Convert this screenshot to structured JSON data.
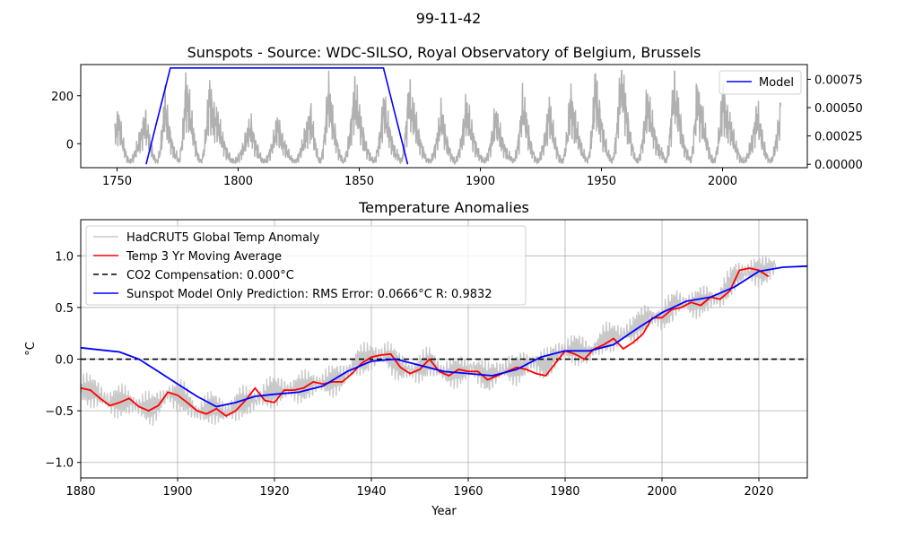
{
  "figure": {
    "suptitle": "99-11-42"
  },
  "chart_data": [
    {
      "type": "line",
      "title": "Sunspots -  Source: WDC-SILSO, Royal Observatory of Belgium, Brussels",
      "xlabel": "",
      "ylabel": "",
      "xlim": [
        1735,
        2035
      ],
      "ylim": [
        -100,
        330
      ],
      "y2lim": [
        -3e-05,
        0.00088
      ],
      "xticks": [
        1750,
        1800,
        1850,
        1900,
        1950,
        2000
      ],
      "yticks": [
        0,
        200
      ],
      "y2ticks": [
        0.0,
        0.00025,
        0.0005,
        0.00075
      ],
      "y2tick_labels": [
        "0.00000",
        "0.00025",
        "0.00050",
        "0.00075"
      ],
      "grid": false,
      "legend_position": "top-right",
      "legend": [
        {
          "name": "Model",
          "color": "#0000ff"
        }
      ],
      "sunspot_color": "#b0b0b0",
      "sunspot_cycle_peaks": [
        [
          1750.5,
          90
        ],
        [
          1761.5,
          90
        ],
        [
          1769.8,
          140
        ],
        [
          1778.5,
          230
        ],
        [
          1788.3,
          200
        ],
        [
          1805.2,
          65
        ],
        [
          1816.4,
          65
        ],
        [
          1829.9,
          110
        ],
        [
          1837.2,
          200
        ],
        [
          1848.1,
          185
        ],
        [
          1860.1,
          140
        ],
        [
          1870.6,
          200
        ],
        [
          1883.9,
          100
        ],
        [
          1894.1,
          130
        ],
        [
          1906.2,
          95
        ],
        [
          1917.6,
          150
        ],
        [
          1928.4,
          120
        ],
        [
          1937.4,
          170
        ],
        [
          1947.5,
          220
        ],
        [
          1958.2,
          270
        ],
        [
          1968.9,
          160
        ],
        [
          1979.9,
          230
        ],
        [
          1989.6,
          220
        ],
        [
          2000.3,
          180
        ],
        [
          2014.3,
          110
        ],
        [
          2024.0,
          120
        ]
      ],
      "sunspot_cycle_minima": [
        1755.2,
        1766.5,
        1775.5,
        1784.7,
        1798.3,
        1810.6,
        1823.3,
        1833.9,
        1843.5,
        1856.0,
        1867.2,
        1878.9,
        1889.6,
        1901.7,
        1913.6,
        1923.6,
        1933.8,
        1944.2,
        1954.3,
        1964.9,
        1976.5,
        1986.8,
        1996.4,
        2008.9,
        2019.8
      ],
      "model": {
        "name": "Model",
        "color": "#0000ff",
        "x": [
          1762,
          1772,
          1860,
          1870
        ],
        "y": [
          0.0,
          0.00085,
          0.00085,
          0.0
        ]
      }
    },
    {
      "type": "line",
      "title": "Temperature Anomalies",
      "xlabel": "Year",
      "ylabel": "°C",
      "xlim": [
        1880,
        2030
      ],
      "ylim": [
        -1.15,
        1.35
      ],
      "xticks": [
        1880,
        1900,
        1920,
        1940,
        1960,
        1980,
        2000,
        2020
      ],
      "yticks": [
        -1.0,
        -0.5,
        0.0,
        0.5,
        1.0
      ],
      "ytick_labels": [
        "−1.0",
        "−0.5",
        "0.0",
        "0.5",
        "1.0"
      ],
      "grid": true,
      "legend_position": "top-left",
      "series": [
        {
          "name": "HadCRUT5 Global Temp Anomaly",
          "color": "#c8c8c8",
          "x": [
            1880,
            1883,
            1886,
            1889,
            1892,
            1895,
            1898,
            1901,
            1904,
            1907,
            1910,
            1913,
            1916,
            1919,
            1922,
            1925,
            1928,
            1931,
            1934,
            1937,
            1940,
            1943,
            1946,
            1949,
            1952,
            1955,
            1958,
            1961,
            1964,
            1967,
            1970,
            1973,
            1976,
            1979,
            1982,
            1985,
            1988,
            1991,
            1994,
            1997,
            2000,
            2003,
            2006,
            2009,
            2012,
            2015,
            2018,
            2021,
            2023
          ],
          "y": [
            -0.28,
            -0.32,
            -0.42,
            -0.4,
            -0.45,
            -0.48,
            -0.34,
            -0.36,
            -0.52,
            -0.46,
            -0.52,
            -0.42,
            -0.4,
            -0.32,
            -0.3,
            -0.28,
            -0.24,
            -0.22,
            -0.18,
            -0.02,
            0.02,
            0.05,
            -0.08,
            -0.12,
            -0.02,
            -0.14,
            -0.12,
            -0.08,
            -0.18,
            -0.1,
            -0.1,
            -0.02,
            -0.06,
            0.08,
            0.1,
            0.06,
            0.2,
            0.22,
            0.28,
            0.42,
            0.4,
            0.55,
            0.52,
            0.58,
            0.6,
            0.8,
            0.85,
            0.85,
            0.9
          ]
        },
        {
          "name": "Temp 3 Yr Moving Average",
          "color": "#ff0000",
          "x": [
            1880,
            1882,
            1884,
            1886,
            1888,
            1890,
            1892,
            1894,
            1896,
            1898,
            1900,
            1902,
            1904,
            1906,
            1908,
            1910,
            1912,
            1914,
            1916,
            1918,
            1920,
            1922,
            1924,
            1926,
            1928,
            1930,
            1932,
            1934,
            1936,
            1938,
            1940,
            1942,
            1944,
            1946,
            1948,
            1950,
            1952,
            1954,
            1956,
            1958,
            1960,
            1962,
            1964,
            1966,
            1968,
            1970,
            1972,
            1974,
            1976,
            1978,
            1980,
            1982,
            1984,
            1986,
            1988,
            1990,
            1992,
            1994,
            1996,
            1998,
            2000,
            2002,
            2004,
            2006,
            2008,
            2010,
            2012,
            2014,
            2016,
            2018,
            2020,
            2022
          ],
          "y": [
            -0.28,
            -0.3,
            -0.38,
            -0.45,
            -0.42,
            -0.38,
            -0.46,
            -0.5,
            -0.45,
            -0.32,
            -0.35,
            -0.42,
            -0.5,
            -0.53,
            -0.48,
            -0.55,
            -0.5,
            -0.4,
            -0.28,
            -0.4,
            -0.42,
            -0.3,
            -0.3,
            -0.28,
            -0.22,
            -0.24,
            -0.22,
            -0.22,
            -0.14,
            -0.04,
            0.02,
            0.04,
            0.05,
            -0.08,
            -0.14,
            -0.1,
            0.0,
            -0.12,
            -0.16,
            -0.1,
            -0.12,
            -0.12,
            -0.2,
            -0.16,
            -0.12,
            -0.08,
            -0.1,
            -0.14,
            -0.16,
            -0.04,
            0.08,
            0.05,
            0.0,
            0.1,
            0.14,
            0.2,
            0.1,
            0.16,
            0.24,
            0.4,
            0.4,
            0.48,
            0.5,
            0.55,
            0.52,
            0.6,
            0.58,
            0.66,
            0.86,
            0.88,
            0.86,
            0.8
          ]
        },
        {
          "name": "CO2 Compensation: 0.000°C",
          "color": "#000000",
          "x": [
            1880,
            2030
          ],
          "y": [
            0.0,
            0.0
          ]
        },
        {
          "name": "Sunspot Model Only Prediction: RMS Error: 0.0666°C  R: 0.9832",
          "color": "#0000ff",
          "x": [
            1880,
            1884,
            1888,
            1892,
            1896,
            1900,
            1904,
            1908,
            1912,
            1916,
            1920,
            1925,
            1930,
            1935,
            1940,
            1945,
            1950,
            1955,
            1960,
            1965,
            1970,
            1975,
            1980,
            1985,
            1990,
            1995,
            2000,
            2005,
            2010,
            2015,
            2020,
            2025,
            2030
          ],
          "y": [
            0.11,
            0.09,
            0.07,
            0.0,
            -0.12,
            -0.24,
            -0.36,
            -0.46,
            -0.42,
            -0.36,
            -0.34,
            -0.32,
            -0.26,
            -0.12,
            -0.02,
            0.0,
            -0.06,
            -0.12,
            -0.14,
            -0.16,
            -0.1,
            0.02,
            0.08,
            0.08,
            0.14,
            0.3,
            0.45,
            0.56,
            0.6,
            0.7,
            0.85,
            0.89,
            0.9
          ]
        }
      ]
    }
  ]
}
